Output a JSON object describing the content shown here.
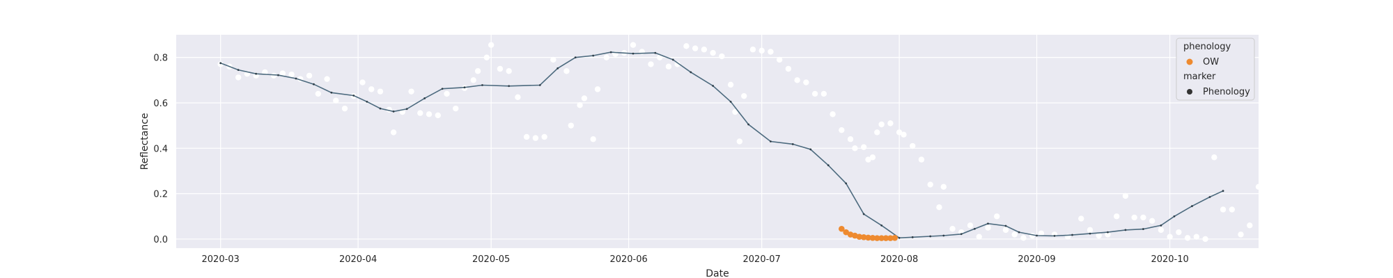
{
  "chart_data": {
    "type": "scatter",
    "title": "",
    "xlabel": "Date",
    "ylabel": "Reflectance",
    "xlim": [
      "2020-02-20",
      "2020-10-21"
    ],
    "ylim": [
      -0.04,
      0.9
    ],
    "grid": true,
    "legend_position": "top-right",
    "x_ticks": [
      "2020-03",
      "2020-04",
      "2020-05",
      "2020-06",
      "2020-07",
      "2020-08",
      "2020-09",
      "2020-10"
    ],
    "y_ticks": [
      0.0,
      0.2,
      0.4,
      0.6,
      0.8
    ],
    "y_tick_labels": [
      "0.0",
      "0.2",
      "0.4",
      "0.6",
      "0.8"
    ],
    "colors": {
      "background": "#eaeaf2",
      "grid": "#ffffff",
      "observed": "#ffffff",
      "smoothed": "#4c6a7e",
      "phenology": "#ee8a2f",
      "marker": "#333333"
    },
    "legend": {
      "phenology_title": "phenology",
      "phenology_entry": "OW",
      "marker_title": "marker",
      "marker_entry": "Phenology"
    },
    "smoothed_curve": [
      [
        "2020-03-01",
        0.775
      ],
      [
        "2020-03-05",
        0.745
      ],
      [
        "2020-03-09",
        0.728
      ],
      [
        "2020-03-14",
        0.722
      ],
      [
        "2020-03-18",
        0.707
      ],
      [
        "2020-03-22",
        0.682
      ],
      [
        "2020-03-26",
        0.645
      ],
      [
        "2020-03-31",
        0.632
      ],
      [
        "2020-04-03",
        0.605
      ],
      [
        "2020-04-06",
        0.575
      ],
      [
        "2020-04-09",
        0.562
      ],
      [
        "2020-04-12",
        0.573
      ],
      [
        "2020-04-16",
        0.62
      ],
      [
        "2020-04-20",
        0.662
      ],
      [
        "2020-04-25",
        0.668
      ],
      [
        "2020-04-29",
        0.678
      ],
      [
        "2020-05-05",
        0.674
      ],
      [
        "2020-05-12",
        0.678
      ],
      [
        "2020-05-16",
        0.752
      ],
      [
        "2020-05-20",
        0.8
      ],
      [
        "2020-05-24",
        0.808
      ],
      [
        "2020-05-28",
        0.823
      ],
      [
        "2020-06-02",
        0.817
      ],
      [
        "2020-06-07",
        0.82
      ],
      [
        "2020-06-11",
        0.79
      ],
      [
        "2020-06-15",
        0.735
      ],
      [
        "2020-06-20",
        0.675
      ],
      [
        "2020-06-24",
        0.605
      ],
      [
        "2020-06-28",
        0.505
      ],
      [
        "2020-07-03",
        0.43
      ],
      [
        "2020-07-08",
        0.418
      ],
      [
        "2020-07-12",
        0.395
      ],
      [
        "2020-07-16",
        0.325
      ],
      [
        "2020-07-20",
        0.245
      ],
      [
        "2020-07-24",
        0.11
      ],
      [
        "2020-07-28",
        0.06
      ],
      [
        "2020-08-01",
        0.005
      ],
      [
        "2020-08-04",
        0.008
      ],
      [
        "2020-08-08",
        0.012
      ],
      [
        "2020-08-11",
        0.015
      ],
      [
        "2020-08-15",
        0.022
      ],
      [
        "2020-08-18",
        0.045
      ],
      [
        "2020-08-21",
        0.068
      ],
      [
        "2020-08-25",
        0.058
      ],
      [
        "2020-08-28",
        0.03
      ],
      [
        "2020-09-01",
        0.015
      ],
      [
        "2020-09-05",
        0.014
      ],
      [
        "2020-09-09",
        0.018
      ],
      [
        "2020-09-13",
        0.024
      ],
      [
        "2020-09-17",
        0.03
      ],
      [
        "2020-09-21",
        0.04
      ],
      [
        "2020-09-25",
        0.044
      ],
      [
        "2020-09-29",
        0.06
      ],
      [
        "2020-10-02",
        0.1
      ],
      [
        "2020-10-06",
        0.145
      ],
      [
        "2020-10-10",
        0.185
      ],
      [
        "2020-10-13",
        0.212
      ]
    ],
    "observations": [
      [
        "2020-03-01",
        0.77
      ],
      [
        "2020-03-03",
        0.76
      ],
      [
        "2020-03-05",
        0.712
      ],
      [
        "2020-03-07",
        0.728
      ],
      [
        "2020-03-09",
        0.72
      ],
      [
        "2020-03-11",
        0.735
      ],
      [
        "2020-03-13",
        0.72
      ],
      [
        "2020-03-15",
        0.73
      ],
      [
        "2020-03-17",
        0.725
      ],
      [
        "2020-03-19",
        0.705
      ],
      [
        "2020-03-21",
        0.72
      ],
      [
        "2020-03-23",
        0.64
      ],
      [
        "2020-03-25",
        0.705
      ],
      [
        "2020-03-27",
        0.61
      ],
      [
        "2020-03-29",
        0.575
      ],
      [
        "2020-03-31",
        0.63
      ],
      [
        "2020-04-02",
        0.69
      ],
      [
        "2020-04-04",
        0.66
      ],
      [
        "2020-04-06",
        0.65
      ],
      [
        "2020-04-08",
        0.57
      ],
      [
        "2020-04-09",
        0.47
      ],
      [
        "2020-04-11",
        0.56
      ],
      [
        "2020-04-13",
        0.65
      ],
      [
        "2020-04-15",
        0.555
      ],
      [
        "2020-04-17",
        0.55
      ],
      [
        "2020-04-19",
        0.545
      ],
      [
        "2020-04-21",
        0.64
      ],
      [
        "2020-04-23",
        0.575
      ],
      [
        "2020-04-25",
        0.665
      ],
      [
        "2020-04-27",
        0.7
      ],
      [
        "2020-04-28",
        0.74
      ],
      [
        "2020-04-30",
        0.8
      ],
      [
        "2020-05-01",
        0.855
      ],
      [
        "2020-05-03",
        0.75
      ],
      [
        "2020-05-05",
        0.74
      ],
      [
        "2020-05-07",
        0.625
      ],
      [
        "2020-05-09",
        0.45
      ],
      [
        "2020-05-11",
        0.445
      ],
      [
        "2020-05-13",
        0.45
      ],
      [
        "2020-05-15",
        0.79
      ],
      [
        "2020-05-18",
        0.74
      ],
      [
        "2020-05-19",
        0.5
      ],
      [
        "2020-05-21",
        0.59
      ],
      [
        "2020-05-22",
        0.62
      ],
      [
        "2020-05-24",
        0.44
      ],
      [
        "2020-05-25",
        0.66
      ],
      [
        "2020-05-27",
        0.8
      ],
      [
        "2020-05-29",
        0.815
      ],
      [
        "2020-05-31",
        0.82
      ],
      [
        "2020-06-02",
        0.855
      ],
      [
        "2020-06-04",
        0.825
      ],
      [
        "2020-06-06",
        0.77
      ],
      [
        "2020-06-08",
        0.8
      ],
      [
        "2020-06-10",
        0.76
      ],
      [
        "2020-06-12",
        0.77
      ],
      [
        "2020-06-14",
        0.85
      ],
      [
        "2020-06-16",
        0.84
      ],
      [
        "2020-06-18",
        0.835
      ],
      [
        "2020-06-20",
        0.82
      ],
      [
        "2020-06-22",
        0.805
      ],
      [
        "2020-06-24",
        0.68
      ],
      [
        "2020-06-25",
        0.56
      ],
      [
        "2020-06-26",
        0.43
      ],
      [
        "2020-06-27",
        0.63
      ],
      [
        "2020-06-29",
        0.835
      ],
      [
        "2020-07-01",
        0.83
      ],
      [
        "2020-07-03",
        0.825
      ],
      [
        "2020-07-05",
        0.79
      ],
      [
        "2020-07-07",
        0.75
      ],
      [
        "2020-07-09",
        0.7
      ],
      [
        "2020-07-11",
        0.69
      ],
      [
        "2020-07-13",
        0.64
      ],
      [
        "2020-07-15",
        0.64
      ],
      [
        "2020-07-17",
        0.55
      ],
      [
        "2020-07-19",
        0.48
      ],
      [
        "2020-07-21",
        0.44
      ],
      [
        "2020-07-22",
        0.4
      ],
      [
        "2020-07-24",
        0.405
      ],
      [
        "2020-07-25",
        0.35
      ],
      [
        "2020-07-26",
        0.36
      ],
      [
        "2020-07-27",
        0.47
      ],
      [
        "2020-07-28",
        0.505
      ],
      [
        "2020-07-30",
        0.51
      ],
      [
        "2020-08-01",
        0.47
      ],
      [
        "2020-08-02",
        0.46
      ],
      [
        "2020-08-04",
        0.41
      ],
      [
        "2020-08-06",
        0.35
      ],
      [
        "2020-08-08",
        0.24
      ],
      [
        "2020-08-10",
        0.14
      ],
      [
        "2020-08-11",
        0.23
      ],
      [
        "2020-08-13",
        0.045
      ],
      [
        "2020-08-15",
        0.03
      ],
      [
        "2020-08-17",
        0.06
      ],
      [
        "2020-08-19",
        0.01
      ],
      [
        "2020-08-21",
        0.05
      ],
      [
        "2020-08-23",
        0.1
      ],
      [
        "2020-08-25",
        0.04
      ],
      [
        "2020-08-27",
        0.02
      ],
      [
        "2020-08-29",
        0.005
      ],
      [
        "2020-08-31",
        0.015
      ],
      [
        "2020-09-02",
        0.025
      ],
      [
        "2020-09-05",
        0.02
      ],
      [
        "2020-09-08",
        0.01
      ],
      [
        "2020-09-11",
        0.09
      ],
      [
        "2020-09-13",
        0.04
      ],
      [
        "2020-09-15",
        0.015
      ],
      [
        "2020-09-17",
        0.02
      ],
      [
        "2020-09-19",
        0.1
      ],
      [
        "2020-09-21",
        0.19
      ],
      [
        "2020-09-23",
        0.095
      ],
      [
        "2020-09-25",
        0.095
      ],
      [
        "2020-09-27",
        0.08
      ],
      [
        "2020-09-29",
        0.04
      ],
      [
        "2020-10-01",
        0.01
      ],
      [
        "2020-10-03",
        0.03
      ],
      [
        "2020-10-05",
        0.005
      ],
      [
        "2020-10-07",
        0.01
      ],
      [
        "2020-10-09",
        0.0
      ],
      [
        "2020-10-11",
        0.36
      ],
      [
        "2020-10-13",
        0.13
      ],
      [
        "2020-10-15",
        0.13
      ],
      [
        "2020-10-17",
        0.02
      ],
      [
        "2020-10-19",
        0.06
      ],
      [
        "2020-10-21",
        0.23
      ]
    ],
    "phenology_points": [
      [
        "2020-07-19",
        0.045
      ],
      [
        "2020-07-20",
        0.03
      ],
      [
        "2020-07-21",
        0.02
      ],
      [
        "2020-07-22",
        0.015
      ],
      [
        "2020-07-23",
        0.01
      ],
      [
        "2020-07-24",
        0.008
      ],
      [
        "2020-07-25",
        0.006
      ],
      [
        "2020-07-26",
        0.005
      ],
      [
        "2020-07-27",
        0.004
      ],
      [
        "2020-07-28",
        0.004
      ],
      [
        "2020-07-29",
        0.004
      ],
      [
        "2020-07-30",
        0.004
      ],
      [
        "2020-07-31",
        0.005
      ]
    ]
  }
}
